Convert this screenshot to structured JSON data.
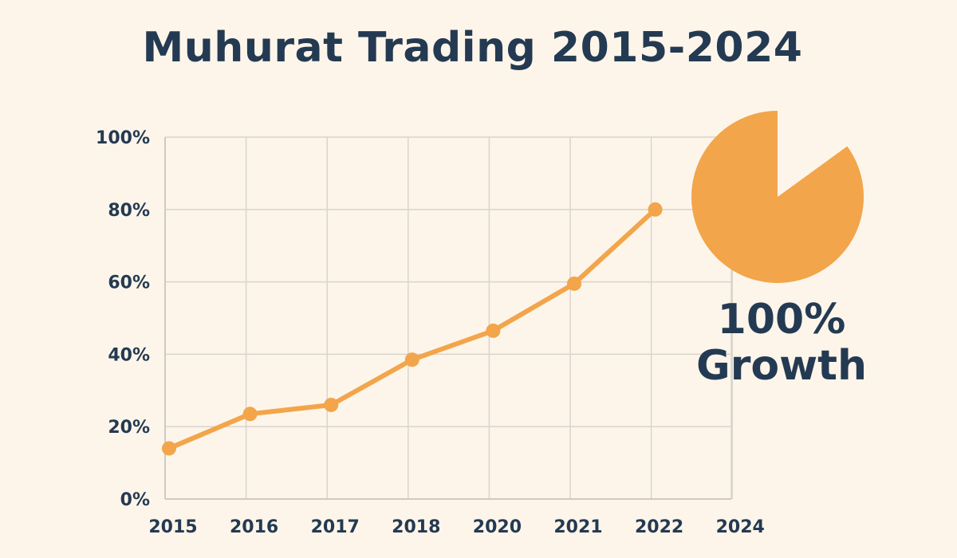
{
  "chart_data": {
    "type": "line",
    "title": "Muhurat Trading 2015-2024",
    "categories": [
      "2015",
      "2016",
      "2017",
      "2018",
      "2020",
      "2021",
      "2022",
      "2024"
    ],
    "series": [
      {
        "values": [
          14,
          23.5,
          26,
          38.5,
          46.5,
          59.5,
          80,
          null
        ]
      }
    ],
    "ylim": [
      0,
      100
    ],
    "yticks": [
      "0%",
      "20%",
      "40%",
      "60%",
      "80%",
      "100%"
    ],
    "grid": true,
    "line_color": "#f2a54a",
    "callout": {
      "shape": "pie",
      "slice_fraction": 0.85,
      "line1": "100%",
      "line2": "Growth",
      "color": "#f2a54a"
    }
  }
}
